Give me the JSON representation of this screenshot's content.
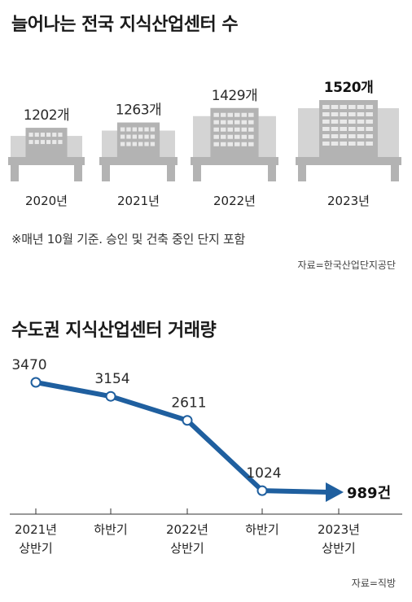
{
  "section1": {
    "title": "늘어나는 전국 지식산업센터 수",
    "note": "※매년 10월 기준. 승인 및 건축 중인 단지 포함",
    "source": "자료=한국산업단지공단"
  },
  "section2": {
    "title": "수도권 지식산업센터 거래량",
    "source": "자료=직방"
  },
  "colors": {
    "accent": "#1f5f9f",
    "building": "#b3b3b3",
    "building_light": "#d4d4d4"
  },
  "chart_data": [
    {
      "type": "bar",
      "title": "늘어나는 전국 지식산업센터 수",
      "categories": [
        "2020년",
        "2021년",
        "2022년",
        "2023년"
      ],
      "value_labels": [
        "1202개",
        "1263개",
        "1429개",
        "1520개"
      ],
      "values": [
        1202,
        1263,
        1429,
        1520
      ],
      "highlight_index": 3
    },
    {
      "type": "line",
      "title": "수도권 지식산업센터 거래량",
      "categories": [
        [
          "2021년",
          "상반기"
        ],
        [
          "하반기"
        ],
        [
          "2022년",
          "상반기"
        ],
        [
          "하반기"
        ],
        [
          "2023년",
          "상반기"
        ]
      ],
      "values": [
        3470,
        3154,
        2611,
        1024,
        989
      ],
      "value_labels": [
        "3470",
        "3154",
        "2611",
        "1024",
        "989건"
      ],
      "highlight_index": 4
    }
  ]
}
